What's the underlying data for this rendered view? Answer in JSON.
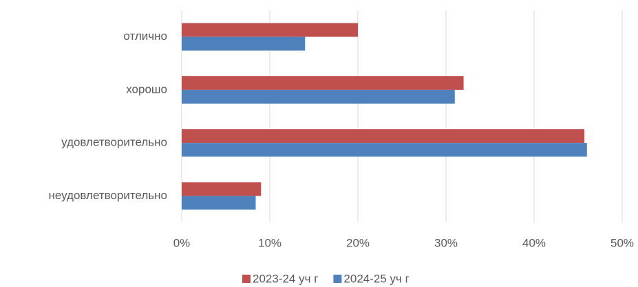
{
  "chart_data": {
    "type": "bar",
    "orientation": "horizontal",
    "categories": [
      "отлично",
      "хорошо",
      "удовлетворительно",
      "неудовлетворительно"
    ],
    "series": [
      {
        "name": "2023-24 уч г",
        "color": "#c0504d",
        "values": [
          20,
          32,
          45.7,
          9
        ]
      },
      {
        "name": "2024-25 уч г",
        "color": "#4f81bd",
        "values": [
          14,
          31,
          46,
          8.4
        ]
      }
    ],
    "xlim": [
      0,
      50
    ],
    "xticks": [
      {
        "value": 0,
        "label": "0%"
      },
      {
        "value": 10,
        "label": "10%"
      },
      {
        "value": 20,
        "label": "20%"
      },
      {
        "value": 30,
        "label": "30%"
      },
      {
        "value": 40,
        "label": "40%"
      },
      {
        "value": 50,
        "label": "50%"
      }
    ],
    "grid": true,
    "legend": "bottom"
  }
}
